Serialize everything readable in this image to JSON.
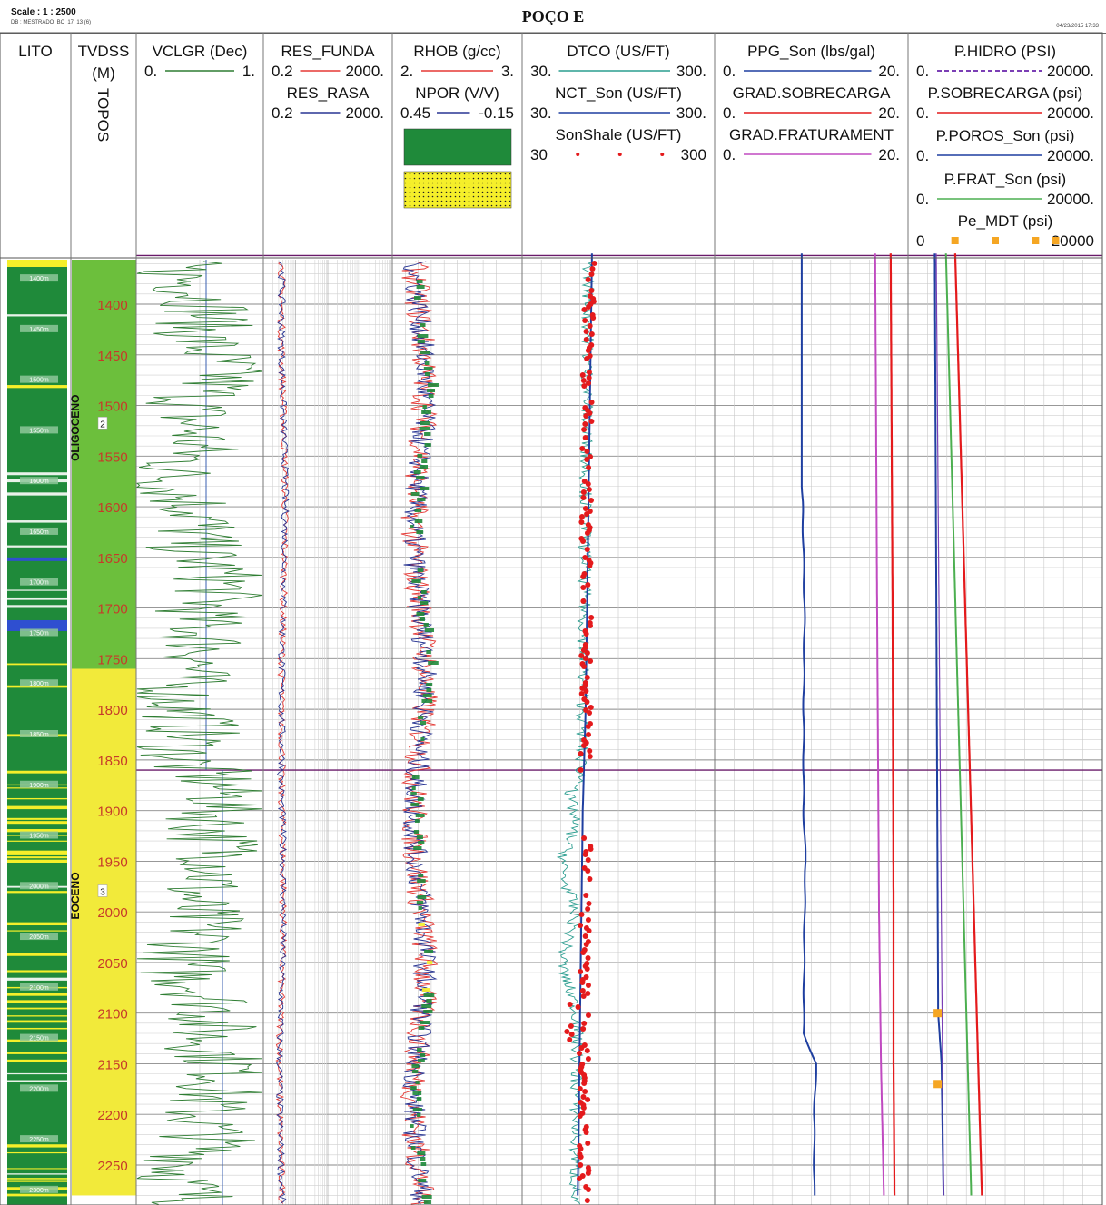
{
  "header": {
    "scale": "Scale : 1 : 2500",
    "subtitle": "DB : MESTRADO_BC_17_13 (6)",
    "title": "POÇO E",
    "date": "04/23/2015 17:33"
  },
  "tracks": {
    "lito": {
      "title": "LITO"
    },
    "tvdss": {
      "title": "TVDSS",
      "unit": "(M)",
      "topos": "TOPOS"
    },
    "vclgr": {
      "curves": [
        {
          "name": "VCLGR (Dec)",
          "min": "0.",
          "max": "1.",
          "color": "#2e7d32"
        }
      ]
    },
    "res": {
      "curves": [
        {
          "name": "RES_FUNDA",
          "min": "0.2",
          "max": "2000.",
          "color": "#e53935"
        },
        {
          "name": "RES_RASA",
          "min": "0.2",
          "max": "2000.",
          "color": "#283593"
        }
      ]
    },
    "density": {
      "curves": [
        {
          "name": "RHOB (g/cc)",
          "min": "2.",
          "max": "3.",
          "color": "#e53935"
        },
        {
          "name": "NPOR (V/V)",
          "min": "0.45",
          "max": "-0.15",
          "color": "#283593"
        }
      ]
    },
    "dtco": {
      "curves": [
        {
          "name": "DTCO (US/FT)",
          "min": "30.",
          "max": "300.",
          "color": "#2a9d8f"
        },
        {
          "name": "NCT_Son (US/FT)",
          "min": "30.",
          "max": "300.",
          "color": "#1f3fa0"
        },
        {
          "name": "SonShale (US/FT)",
          "min": "30",
          "max": "300",
          "color": "#e41a1c"
        }
      ]
    },
    "ppg": {
      "curves": [
        {
          "name": "PPG_Son (lbs/gal)",
          "min": "0.",
          "max": "20.",
          "color": "#1f3fa0"
        },
        {
          "name": "GRAD.SOBRECARGA",
          "min": "0.",
          "max": "20.",
          "color": "#e41a1c"
        },
        {
          "name": "GRAD.FRATURAMENT",
          "min": "0.",
          "max": "20.",
          "color": "#c04ac0"
        }
      ]
    },
    "pressure": {
      "curves": [
        {
          "name": "P.HIDRO (PSI)",
          "min": "0.",
          "max": "20000.",
          "color": "#7b3fb5"
        },
        {
          "name": "P.SOBRECARGA (psi)",
          "min": "0.",
          "max": "20000.",
          "color": "#e41a1c"
        },
        {
          "name": "P.POROS_Son (psi)",
          "min": "0.",
          "max": "20000.",
          "color": "#1f3fa0"
        },
        {
          "name": "P.FRAT_Son (psi)",
          "min": "0.",
          "max": "20000.",
          "color": "#4caf50"
        },
        {
          "name": "Pe_MDT (psi)",
          "min": "0",
          "max": "20000",
          "color": "#f5a623"
        }
      ]
    }
  },
  "chart_data": {
    "type": "well-log",
    "depth_range": [
      1350,
      2280
    ],
    "depth_ticks": [
      "1400",
      "1450",
      "1500",
      "1550",
      "1600",
      "1650",
      "1700",
      "1750",
      "1800",
      "1850",
      "1900",
      "1950",
      "2000",
      "2050",
      "2100",
      "2150",
      "2200",
      "2250"
    ],
    "lito_depth_labels": [
      "1400m",
      "1450m",
      "1500m",
      "1550m",
      "1600m",
      "1650m",
      "1700m",
      "1750m",
      "1800m",
      "1850m",
      "1900m",
      "1950m",
      "2000m",
      "2050m",
      "2100m",
      "2150m",
      "2200m",
      "2250m",
      "2300m"
    ],
    "formations": [
      {
        "name": "OLIGOCENO",
        "number": "2",
        "top": 1350,
        "base": 1760,
        "color": "#6cbf3c"
      },
      {
        "name": "EOCENO",
        "number": "3",
        "top": 1760,
        "base": 2280,
        "color": "#f2ea3a"
      }
    ],
    "tops_depths": [
      1352,
      1860
    ],
    "ppg_son_ppg": [
      [
        1350,
        9.0
      ],
      [
        1580,
        9.0
      ],
      [
        1600,
        9.1
      ],
      [
        1650,
        9.2
      ],
      [
        1700,
        9.3
      ],
      [
        1800,
        9.2
      ],
      [
        1900,
        9.2
      ],
      [
        1950,
        9.4
      ],
      [
        2000,
        9.3
      ],
      [
        2120,
        9.2
      ],
      [
        2150,
        10.5
      ],
      [
        2200,
        10.3
      ],
      [
        2280,
        10.3
      ]
    ],
    "grad_sobrecarga_ppg": [
      [
        1350,
        18.2
      ],
      [
        1700,
        18.4
      ],
      [
        2000,
        18.5
      ],
      [
        2150,
        18.5
      ],
      [
        2280,
        18.6
      ]
    ],
    "grad_fraturament_ppg": [
      [
        1350,
        16.6
      ],
      [
        1700,
        16.8
      ],
      [
        2000,
        17.0
      ],
      [
        2150,
        17.2
      ],
      [
        2280,
        17.5
      ]
    ],
    "pe_mdt_psi": [
      [
        2100,
        3050
      ],
      [
        2170,
        3050
      ]
    ],
    "nct_son_usft": [
      [
        1350,
        128
      ],
      [
        1800,
        119
      ],
      [
        1900,
        115
      ],
      [
        2280,
        108
      ]
    ],
    "sonshale_trend_usft": [
      [
        1350,
        125
      ],
      [
        1550,
        120
      ],
      [
        1800,
        120
      ],
      [
        1880,
        117
      ],
      [
        1950,
        117
      ],
      [
        2000,
        117
      ],
      [
        2100,
        117
      ],
      [
        2280,
        117
      ]
    ],
    "pressure_trends_psi": {
      "p_hidro": [
        [
          1350,
          2900
        ],
        [
          2280,
          3650
        ]
      ],
      "p_sobrecarga": [
        [
          1350,
          4850
        ],
        [
          2280,
          7600
        ]
      ],
      "p_poros_son": [
        [
          1350,
          2750
        ],
        [
          2100,
          3100
        ],
        [
          2150,
          3450
        ],
        [
          2280,
          3650
        ]
      ],
      "p_frat_son": [
        [
          1350,
          3900
        ],
        [
          2280,
          6500
        ]
      ]
    }
  }
}
